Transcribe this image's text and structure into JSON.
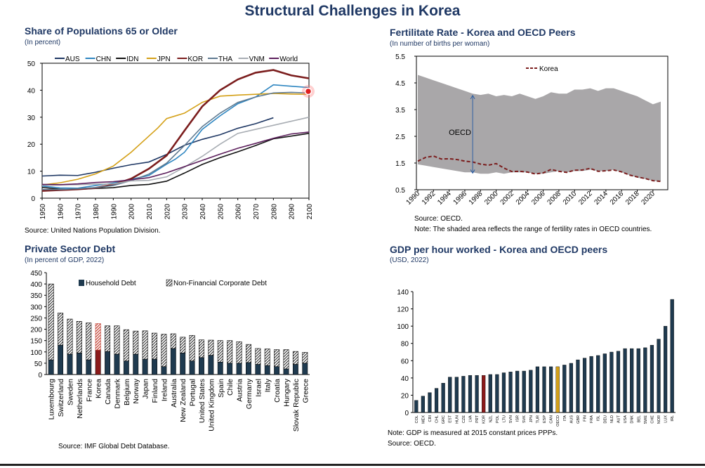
{
  "page_title": "Structural Challenges in Korea",
  "panels": {
    "pop": {
      "title": "Share of Populations 65 or Older",
      "subtitle": "(In percent)",
      "source": "Source: United Nations Population Division."
    },
    "fert": {
      "title": "Fertilitate Rate - Korea and OECD Peers",
      "subtitle": "(In number of births per woman)",
      "source": "Source: OECD.",
      "note": "Note: The shaded area reflects the range of fertility rates in OECD countries."
    },
    "debt": {
      "title": "Private Sector Debt",
      "subtitle": "(In percent of GDP, 2022)",
      "source": "Source: IMF Global Debt Database."
    },
    "gdp": {
      "title": "GDP per hour worked - Korea and OECD peers",
      "subtitle": "(USD, 2022)",
      "note": "Note: GDP is measured at 2015 constant prices PPPs.",
      "source": "Source: OECD."
    }
  },
  "chart_data": [
    {
      "id": "pop",
      "type": "line",
      "title": "Share of Populations 65 or Older",
      "ylim": [
        0,
        50
      ],
      "yticks": [
        0,
        10,
        20,
        30,
        40,
        50
      ],
      "xlim": [
        1950,
        2100
      ],
      "xticks": [
        1950,
        1960,
        1970,
        1980,
        1990,
        2000,
        2010,
        2020,
        2030,
        2040,
        2050,
        2060,
        2070,
        2080,
        2090,
        2100
      ],
      "legend_position": "top",
      "series": [
        {
          "name": "AUS",
          "color": "#1f3864",
          "x": [
            1950,
            1960,
            1970,
            1980,
            1990,
            2000,
            2010,
            2020,
            2030,
            2040,
            2050,
            2060,
            2070,
            2080
          ],
          "values": [
            8.2,
            8.5,
            8.4,
            9.6,
            11.1,
            12.4,
            13.4,
            16.2,
            19.6,
            21.8,
            23.5,
            25.9,
            27.6,
            29.8
          ]
        },
        {
          "name": "CHN",
          "color": "#2e86c1",
          "x": [
            1950,
            1960,
            1970,
            1980,
            1990,
            2000,
            2010,
            2020,
            2025,
            2030,
            2040,
            2050,
            2060,
            2070,
            2080,
            2090,
            2100
          ],
          "values": [
            4.5,
            3.8,
            3.7,
            4.7,
            5.6,
            7.0,
            8.4,
            12.6,
            14.5,
            17.0,
            25.5,
            30.5,
            35.0,
            37.5,
            42.0,
            41.5,
            41.0
          ]
        },
        {
          "name": "IDN",
          "color": "#111111",
          "x": [
            1950,
            1960,
            1970,
            1980,
            1990,
            2000,
            2010,
            2020,
            2030,
            2040,
            2050,
            2060,
            2070,
            2080,
            2090,
            2100
          ],
          "values": [
            4.0,
            3.3,
            3.3,
            3.6,
            3.9,
            4.7,
            5.1,
            6.3,
            9.3,
            12.5,
            15.0,
            17.2,
            19.5,
            22.0,
            23.0,
            24.0
          ]
        },
        {
          "name": "JPN",
          "color": "#d4a017",
          "x": [
            1950,
            1960,
            1970,
            1980,
            1990,
            2000,
            2005,
            2010,
            2015,
            2020,
            2030,
            2040,
            2050,
            2060,
            2070,
            2080,
            2090,
            2100
          ],
          "values": [
            4.9,
            5.7,
            7.0,
            9.0,
            11.9,
            17.0,
            20.0,
            23.0,
            26.0,
            29.5,
            31.5,
            35.5,
            37.8,
            38.2,
            38.5,
            38.8,
            38.6,
            38.5
          ]
        },
        {
          "name": "KOR",
          "color": "#7b1d1d",
          "x": [
            1950,
            1960,
            1970,
            1980,
            1990,
            2000,
            2010,
            2020,
            2030,
            2040,
            2050,
            2060,
            2070,
            2080,
            2090,
            2100
          ],
          "values": [
            2.7,
            3.0,
            3.3,
            3.8,
            5.0,
            7.2,
            10.9,
            15.8,
            25.0,
            34.0,
            40.0,
            44.0,
            46.5,
            47.5,
            45.5,
            44.4
          ]
        },
        {
          "name": "THA",
          "color": "#5f7a91",
          "x": [
            1950,
            1960,
            1970,
            1980,
            1990,
            2000,
            2010,
            2020,
            2030,
            2040,
            2050,
            2060,
            2070,
            2080,
            2090,
            2100
          ],
          "values": [
            3.2,
            3.2,
            3.5,
            3.9,
            4.7,
            6.5,
            8.9,
            13.0,
            19.5,
            26.5,
            31.5,
            35.5,
            37.5,
            39.0,
            39.2,
            39.0
          ]
        },
        {
          "name": "VNM",
          "color": "#a8adb3",
          "x": [
            1950,
            1960,
            1970,
            1980,
            1990,
            2000,
            2010,
            2020,
            2030,
            2040,
            2050,
            2060,
            2070,
            2080,
            2090,
            2100
          ],
          "values": [
            4.8,
            4.9,
            5.0,
            5.2,
            5.3,
            6.4,
            6.6,
            7.9,
            11.5,
            15.5,
            20.0,
            24.0,
            25.5,
            27.0,
            28.5,
            30.0
          ]
        },
        {
          "name": "World",
          "color": "#5c1f5c",
          "x": [
            1950,
            1960,
            1970,
            1980,
            1990,
            2000,
            2010,
            2020,
            2030,
            2040,
            2050,
            2060,
            2070,
            2080,
            2090,
            2100
          ],
          "values": [
            5.1,
            5.0,
            5.3,
            5.8,
            6.1,
            6.8,
            7.6,
            9.4,
            11.7,
            14.0,
            16.3,
            18.5,
            20.3,
            22.2,
            23.8,
            24.5
          ]
        }
      ]
    },
    {
      "id": "fert",
      "type": "area",
      "title": "Fertilitate Rate - Korea and OECD Peers",
      "ylim": [
        0.5,
        5.5
      ],
      "yticks": [
        0.5,
        1.5,
        2.5,
        3.5,
        4.5,
        5.5
      ],
      "x": [
        1990,
        1991,
        1992,
        1993,
        1994,
        1995,
        1996,
        1997,
        1998,
        1999,
        2000,
        2001,
        2002,
        2003,
        2004,
        2005,
        2006,
        2007,
        2008,
        2009,
        2010,
        2011,
        2012,
        2013,
        2014,
        2015,
        2016,
        2017,
        2018,
        2019,
        2020,
        2021
      ],
      "xtick_labels": [
        "1990",
        "1992",
        "1994",
        "1996",
        "1998",
        "2000",
        "2002",
        "2004",
        "2006",
        "2008",
        "2010",
        "2012",
        "2014",
        "2016",
        "2018",
        "2020"
      ],
      "oecd_max": [
        4.8,
        4.7,
        4.6,
        4.5,
        4.4,
        4.3,
        4.2,
        4.1,
        4.05,
        4.1,
        4.0,
        4.05,
        4.0,
        4.1,
        4.0,
        3.9,
        4.0,
        4.15,
        4.1,
        4.1,
        4.25,
        4.25,
        4.3,
        4.2,
        4.3,
        4.3,
        4.2,
        4.1,
        4.0,
        3.85,
        3.7,
        3.8
      ],
      "oecd_min": [
        1.45,
        1.4,
        1.35,
        1.3,
        1.25,
        1.2,
        1.15,
        1.15,
        1.1,
        1.1,
        1.15,
        1.1,
        1.15,
        1.15,
        1.15,
        1.1,
        1.1,
        1.15,
        1.2,
        1.15,
        1.2,
        1.2,
        1.25,
        1.2,
        1.2,
        1.25,
        1.15,
        1.05,
        0.95,
        0.9,
        0.84,
        0.81
      ],
      "series": [
        {
          "name": "Korea",
          "color": "#7b1d1d",
          "values": [
            1.57,
            1.71,
            1.76,
            1.65,
            1.66,
            1.63,
            1.57,
            1.54,
            1.46,
            1.42,
            1.48,
            1.31,
            1.18,
            1.19,
            1.16,
            1.09,
            1.13,
            1.26,
            1.19,
            1.15,
            1.23,
            1.24,
            1.3,
            1.19,
            1.21,
            1.24,
            1.17,
            1.05,
            0.98,
            0.92,
            0.84,
            0.81
          ]
        }
      ],
      "annotation": "OECD",
      "legend_position": "top"
    },
    {
      "id": "debt",
      "type": "bar",
      "title": "Private Sector Debt",
      "ylim": [
        0,
        450
      ],
      "yticks": [
        0,
        50,
        100,
        150,
        200,
        250,
        300,
        350,
        400,
        450
      ],
      "categories": [
        "Luxembourg",
        "Switzerland",
        "Sweden",
        "Netherlands",
        "France",
        "Korea",
        "Canada",
        "Denmark",
        "Belgium",
        "Norway",
        "Japan",
        "Finland",
        "Ireland",
        "Australia",
        "New Zealand",
        "Portugal",
        "United States",
        "United Kingdom",
        "Spain",
        "Chile",
        "Austria",
        "Germany",
        "Israel",
        "Italy",
        "Croatia",
        "Hungary",
        "Slovak Republic",
        "Greece"
      ],
      "highlight": "Korea",
      "legend_position": "top",
      "series": [
        {
          "name": "Household Debt",
          "values": [
            65,
            130,
            90,
            95,
            65,
            108,
            102,
            90,
            60,
            90,
            68,
            68,
            35,
            115,
            95,
            60,
            75,
            85,
            55,
            50,
            50,
            53,
            45,
            40,
            35,
            25,
            45,
            50
          ]
        },
        {
          "name": "Non-Financial Corporate Debt",
          "values": [
            335,
            142,
            155,
            140,
            163,
            117,
            113,
            125,
            138,
            102,
            125,
            115,
            143,
            65,
            70,
            113,
            78,
            67,
            95,
            100,
            95,
            80,
            70,
            73,
            75,
            85,
            57,
            48
          ]
        }
      ]
    },
    {
      "id": "gdp",
      "type": "bar",
      "title": "GDP per hour worked - Korea and OECD peers",
      "ylim": [
        0,
        140
      ],
      "yticks": [
        0,
        20,
        40,
        60,
        80,
        100,
        120,
        140
      ],
      "categories": [
        "COL",
        "MEX",
        "CRI",
        "CHL",
        "GRC",
        "EST",
        "HUN",
        "CZE",
        "LVA",
        "PRT",
        "KOR",
        "NZL",
        "POL",
        "LTU",
        "SVN",
        "ISR",
        "SVK",
        "JPN",
        "TUR",
        "ESP",
        "CAN",
        "OECD",
        "ITA",
        "AUS",
        "GBR",
        "FIN",
        "FRA",
        "ISL",
        "DEU",
        "NLD",
        "AUT",
        "USA",
        "DNK",
        "BEL",
        "SWE",
        "CHE",
        "NOR",
        "LUX",
        "IRL"
      ],
      "highlight": {
        "KOR": "#8b1a1a",
        "OECD": "#d4a017"
      },
      "values": [
        14,
        19,
        23,
        28,
        34,
        41,
        41,
        42,
        43,
        43,
        43,
        44,
        44,
        46,
        47,
        48,
        48,
        49,
        53,
        53,
        53,
        53,
        55,
        57,
        61,
        63,
        65,
        66,
        68,
        70,
        71,
        74,
        74,
        74,
        75,
        78,
        85,
        100,
        131
      ]
    }
  ]
}
